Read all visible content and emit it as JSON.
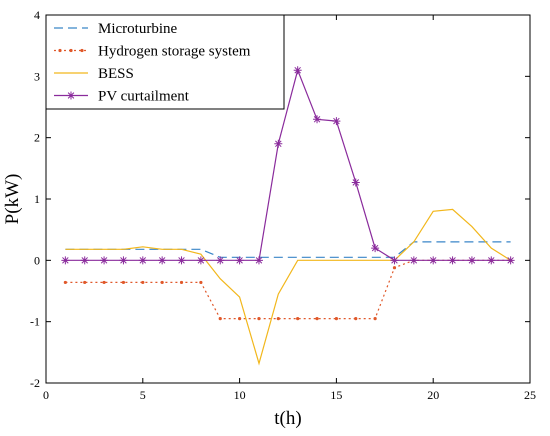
{
  "chart_data": {
    "type": "line",
    "xlabel": "t(h)",
    "ylabel": "P(kW)",
    "xlim": [
      0,
      25
    ],
    "ylim": [
      -2,
      4
    ],
    "xticks": [
      0,
      5,
      10,
      15,
      20,
      25
    ],
    "yticks": [
      -2,
      -1,
      0,
      1,
      2,
      3,
      4
    ],
    "grid": false,
    "legend_position": "top-left",
    "x": [
      1,
      2,
      3,
      4,
      5,
      6,
      7,
      8,
      9,
      10,
      11,
      12,
      13,
      14,
      15,
      16,
      17,
      18,
      19,
      20,
      21,
      22,
      23,
      24
    ],
    "series": [
      {
        "name": "Microturbine",
        "color": "#3a86c8",
        "line_style": "dashed",
        "marker": "none",
        "values": [
          0.18,
          0.18,
          0.18,
          0.18,
          0.18,
          0.18,
          0.18,
          0.18,
          0.05,
          0.05,
          0.05,
          0.05,
          0.05,
          0.05,
          0.05,
          0.05,
          0.05,
          0.05,
          0.3,
          0.3,
          0.3,
          0.3,
          0.3,
          0.3
        ]
      },
      {
        "name": "Hydrogen storage system",
        "color": "#e0582a",
        "line_style": "dotted",
        "marker": "dot",
        "values": [
          -0.36,
          -0.36,
          -0.36,
          -0.36,
          -0.36,
          -0.36,
          -0.36,
          -0.36,
          -0.95,
          -0.95,
          -0.95,
          -0.95,
          -0.95,
          -0.95,
          -0.95,
          -0.95,
          -0.95,
          -0.12,
          0,
          0,
          0,
          0,
          0,
          0
        ]
      },
      {
        "name": "BESS",
        "color": "#f2b71c",
        "line_style": "solid",
        "marker": "none",
        "values": [
          0.18,
          0.18,
          0.18,
          0.18,
          0.22,
          0.18,
          0.18,
          0.1,
          -0.3,
          -0.6,
          -1.68,
          -0.55,
          0,
          0,
          0,
          0,
          0,
          0,
          0.3,
          0.8,
          0.83,
          0.55,
          0.2,
          0
        ]
      },
      {
        "name": "PV curtailment",
        "color": "#8a2b9c",
        "line_style": "solid",
        "marker": "asterisk",
        "values": [
          0,
          0,
          0,
          0,
          0,
          0,
          0,
          0,
          0,
          0,
          0,
          1.9,
          3.1,
          2.3,
          2.27,
          1.27,
          0.2,
          0,
          0,
          0,
          0,
          0,
          0,
          0
        ]
      }
    ]
  }
}
